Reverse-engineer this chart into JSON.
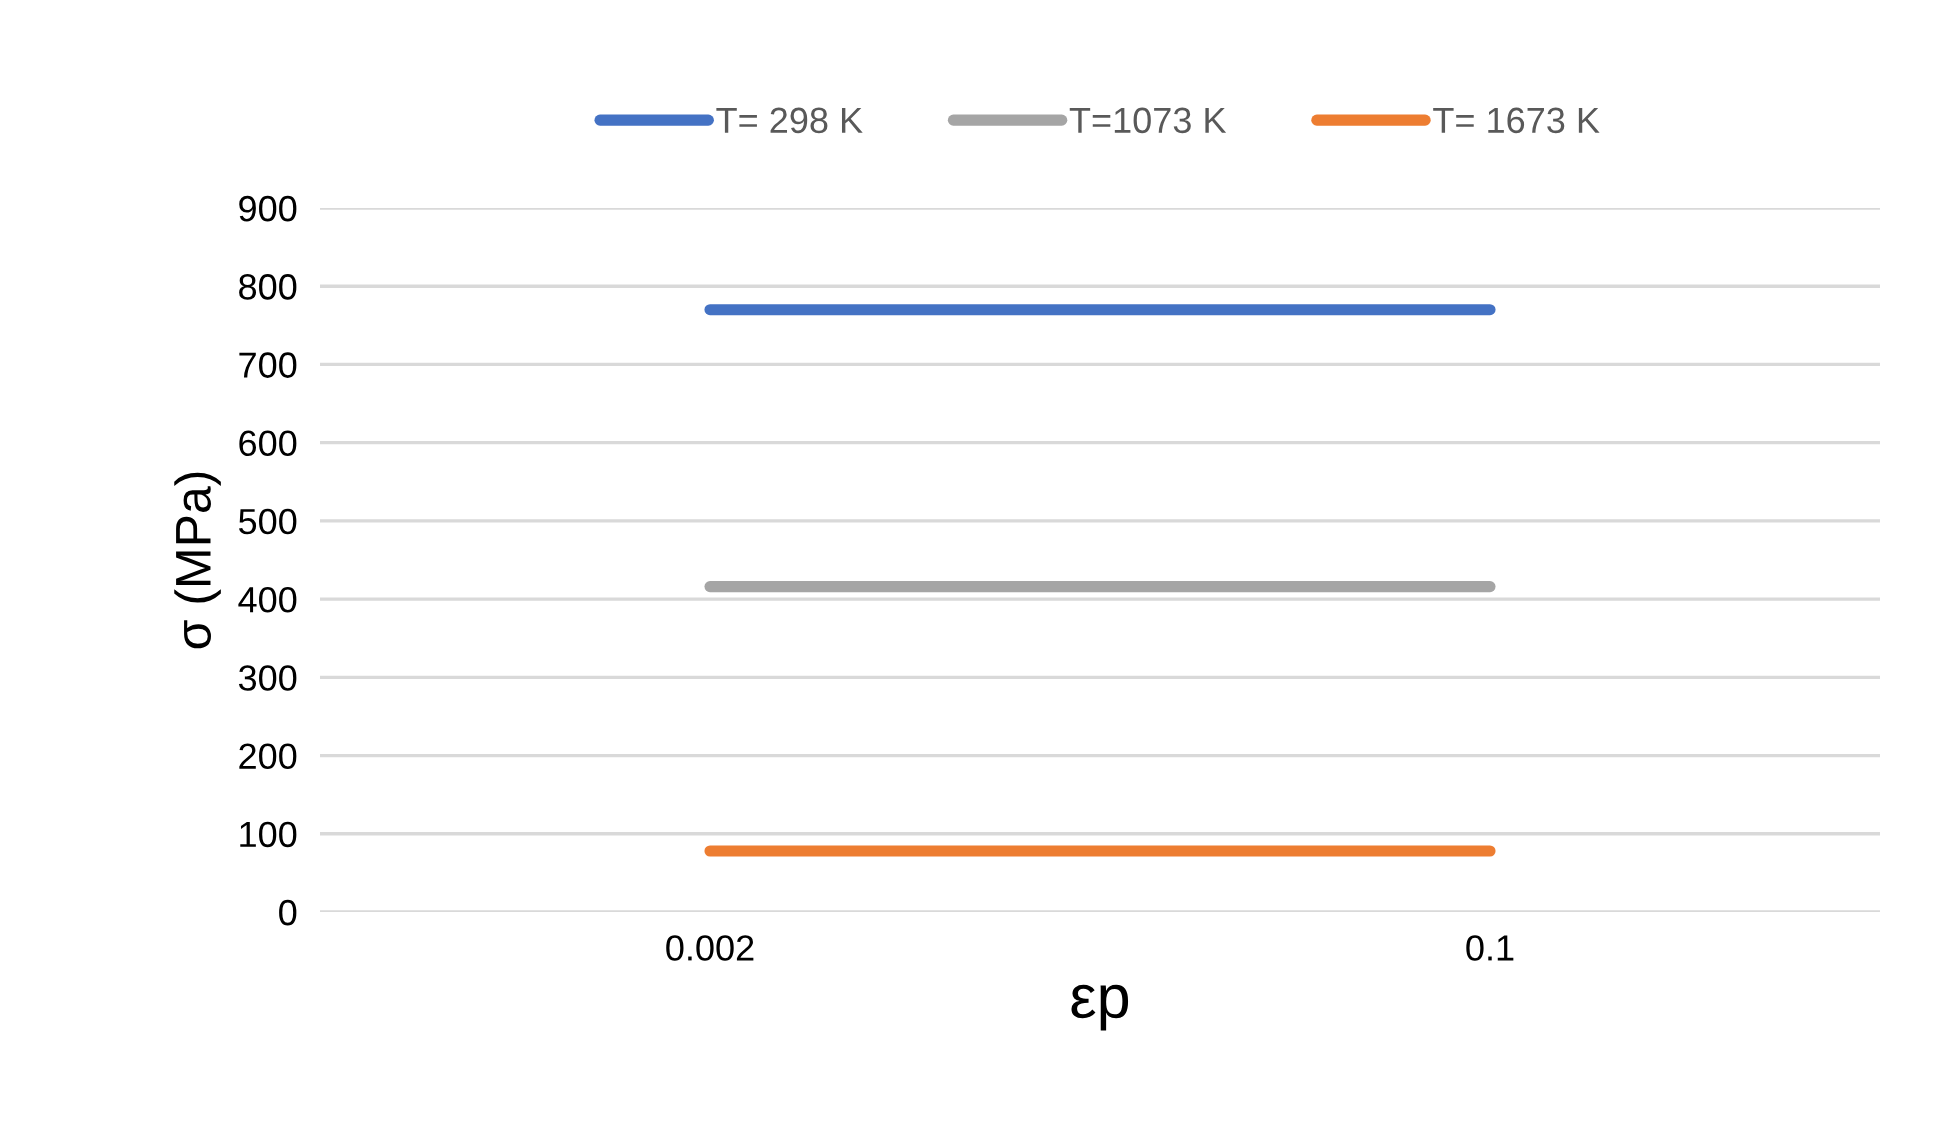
{
  "chart_data": {
    "type": "line",
    "xlabel": "εp",
    "ylabel": "σ (MPa)",
    "categories": [
      "0.002",
      "0.1"
    ],
    "series": [
      {
        "name": "T= 298 K",
        "color": "#4472c4",
        "values": [
          770,
          770
        ]
      },
      {
        "name": "T=1073 K",
        "color": "#a5a5a5",
        "values": [
          416,
          416
        ]
      },
      {
        "name": "T= 1673 K",
        "color": "#ed7d31",
        "values": [
          78,
          78
        ]
      }
    ],
    "ylim": [
      0,
      900
    ],
    "yticks": [
      0,
      100,
      200,
      300,
      400,
      500,
      600,
      700,
      800,
      900
    ],
    "grid": "y",
    "legend": "top",
    "marker": "none",
    "line_style": "solid"
  }
}
